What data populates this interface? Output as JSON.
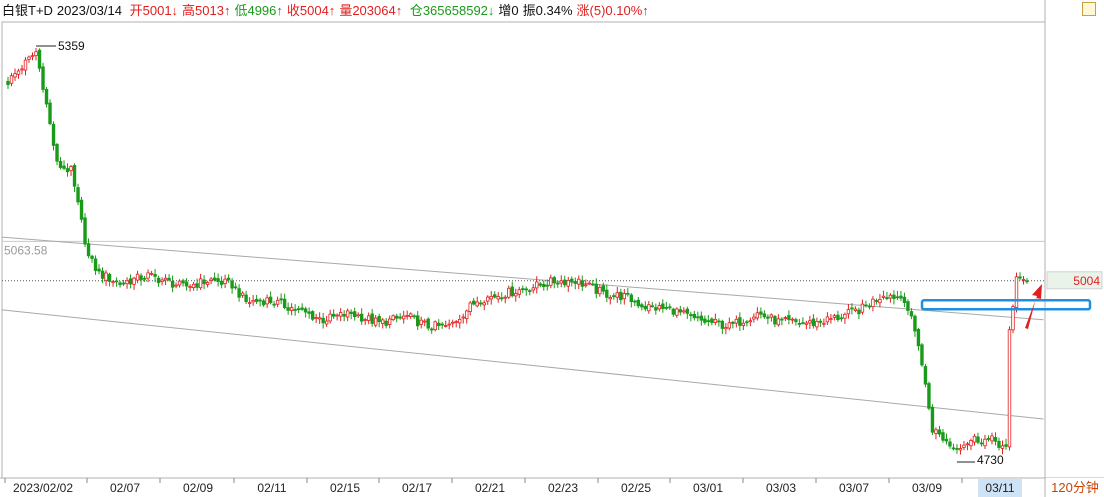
{
  "header": {
    "name": "白银T+D",
    "date": "2023/03/14",
    "open_label": "开5001↓",
    "high_label": "高5013↑",
    "low_label": "低4996↑",
    "close_label": "收5004↑",
    "volume_label": "量203064↑",
    "position_label": "仓365658592↓",
    "increase_label": "增0",
    "amplitude_label": "振0.34%",
    "change_label": "涨(5)0.10%↑"
  },
  "period": "120分钟",
  "colors": {
    "up": "#e02020",
    "down": "#1a9a1a",
    "highlight_box": "#1e90e0",
    "arrow": "#e02020"
  },
  "chart_data": {
    "type": "candlestick",
    "title": "白银T+D",
    "x_tick_labels": [
      "2023/02/02",
      "02/07",
      "02/09",
      "02/11",
      "02/15",
      "02/17",
      "02/21",
      "02/23",
      "02/25",
      "03/01",
      "03/03",
      "03/07",
      "03/09",
      "03/11"
    ],
    "highlighted_tick": "03/11",
    "ylim": [
      4700,
      5400
    ],
    "annotations": {
      "max": 5359,
      "min": 4730,
      "level_label": "5063.58",
      "last_price": 5004
    },
    "reference_level": 5063.58,
    "trendlines": [
      {
        "from": [
          0,
          5070
        ],
        "to": [
          290,
          4945
        ]
      },
      {
        "from": [
          0,
          4960
        ],
        "to": [
          290,
          4795
        ]
      }
    ],
    "highlight_zone": {
      "from_index": 268,
      "to_index": 290,
      "low": 4960,
      "high": 4970
    },
    "last_close": 5004
  }
}
